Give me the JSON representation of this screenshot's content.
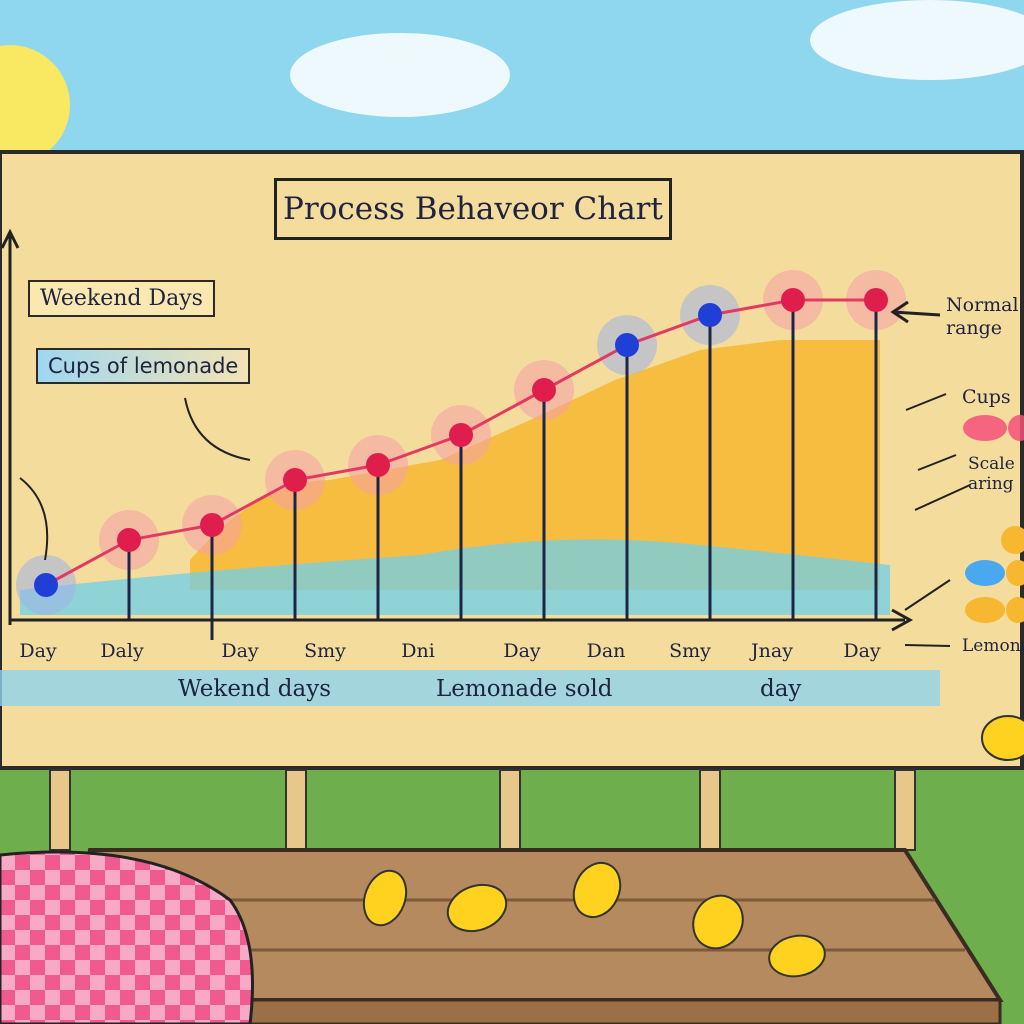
{
  "chart_data": {
    "type": "line",
    "title": "Process Behaveor Chart",
    "categories": [
      "Day",
      "Daly",
      "",
      "Day",
      "Smy",
      "Dni",
      "Day",
      "Dan",
      "Smy",
      "Jnay",
      "Day"
    ],
    "tick_labels": [
      "Day",
      "Daly",
      "Day",
      "Smy",
      "Dni",
      "Day",
      "Dan",
      "Smy",
      "Jnay",
      "Day"
    ],
    "series": [
      {
        "values": [
          1,
          4,
          5,
          8,
          9,
          11,
          14,
          17,
          19,
          20,
          20
        ]
      }
    ],
    "point_colors": [
      "blue",
      "red",
      "red",
      "red",
      "red",
      "red",
      "red",
      "blue",
      "blue",
      "red",
      "red"
    ],
    "annotations": {
      "weekend_days_box": "Weekend Days",
      "cups_box": "Cups of lemonade",
      "normal_range": "Normal\nrange",
      "cups_side": "Cups",
      "scale_side": "Scale\naring",
      "lemonade_side": "Lemona"
    },
    "bottom_labels": [
      "Wekend days",
      "Lemonade sold",
      "day"
    ],
    "grid": false,
    "legend": "right"
  },
  "colors": {
    "line": "#e23a63",
    "point_red": "#e01e4e",
    "point_blue": "#1f3fd6",
    "area_orange": "#f7b731",
    "area_blue": "#6fd0ea",
    "board": "#f3dc9c",
    "sky": "#8fd6ef"
  }
}
